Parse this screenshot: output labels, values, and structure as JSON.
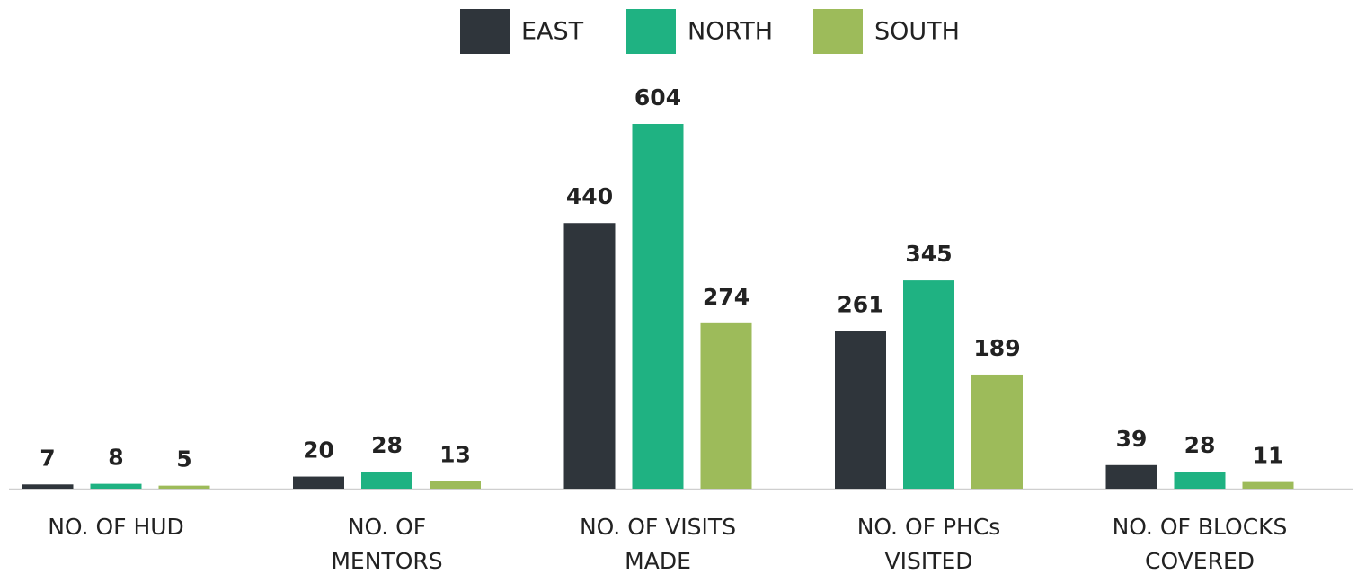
{
  "chart_data": {
    "type": "bar",
    "categories": [
      "NO. OF HUD",
      "NO. OF\nMENTORS",
      "NO. OF VISITS\nMADE",
      "NO. OF PHCs\nVISITED",
      "NO. OF BLOCKS\nCOVERED"
    ],
    "series": [
      {
        "name": "EAST",
        "color": "#2f353b",
        "values": [
          7,
          20,
          440,
          261,
          39
        ]
      },
      {
        "name": "NORTH",
        "color": "#1fb282",
        "values": [
          8,
          28,
          604,
          345,
          28
        ]
      },
      {
        "name": "SOUTH",
        "color": "#9dbb5a",
        "values": [
          5,
          13,
          274,
          189,
          11
        ]
      }
    ],
    "legend": "top"
  }
}
